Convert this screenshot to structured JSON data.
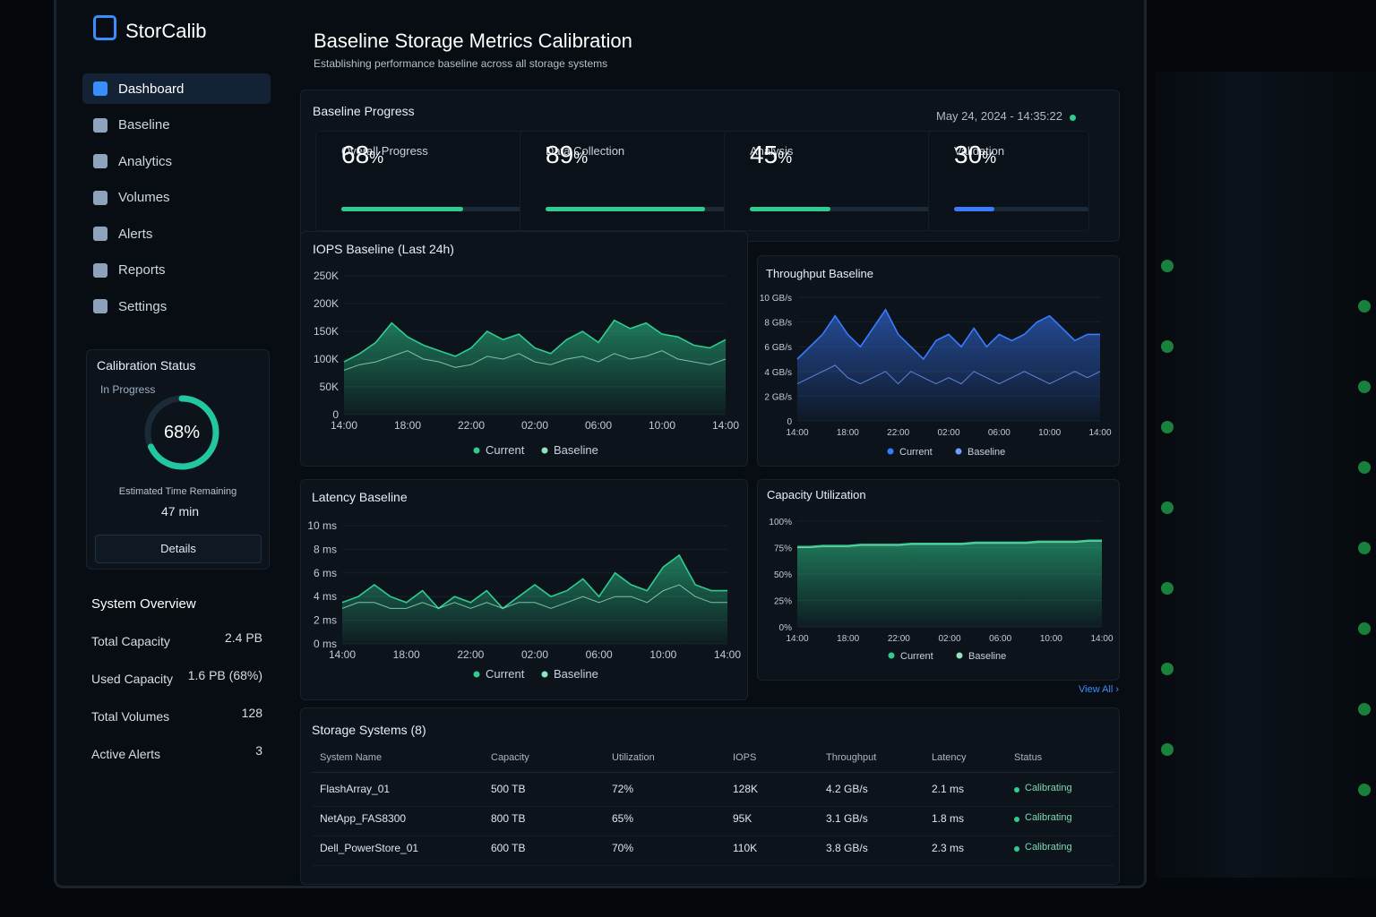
{
  "app": {
    "name": "StorCalib"
  },
  "nav": [
    "Dashboard",
    "Baseline",
    "Analytics",
    "Volumes",
    "Alerts",
    "Reports",
    "Settings"
  ],
  "calibration": {
    "title": "Calibration Status",
    "state": "In Progress",
    "value": 68,
    "unit": "%",
    "eta_label": "Estimated Time Remaining",
    "eta": "47 min",
    "button": "Details"
  },
  "overview": {
    "title": "System Overview",
    "rows": [
      [
        "Total Capacity",
        "2.4 PB"
      ],
      [
        "Used Capacity",
        "1.6 PB (68%)"
      ],
      [
        "Total Volumes",
        "128"
      ],
      [
        "Active Alerts",
        "3"
      ]
    ]
  },
  "header": {
    "title": "Baseline Storage Metrics Calibration",
    "subtitle": "Establishing performance baseline across all storage systems",
    "timestamp": "May 24, 2024 - 14:35:22"
  },
  "progress": {
    "title": "Baseline Progress",
    "items": [
      {
        "value": 68,
        "unit": "%",
        "label": "Overall Progress",
        "color": "#2ecc8f"
      },
      {
        "value": 89,
        "unit": "%",
        "label": "Data Collection",
        "color": "#2ecc8f"
      },
      {
        "value": 45,
        "unit": "%",
        "label": "Analysis",
        "color": "#2ecc8f"
      },
      {
        "value": 30,
        "unit": "%",
        "label": "Validation",
        "color": "#3a7bff"
      }
    ]
  },
  "iops": {
    "type": "line",
    "title": "IOPS Baseline (Last 24h)",
    "categories": [
      "14:00",
      null,
      null,
      null,
      "18:00",
      null,
      null,
      null,
      "22:00",
      null,
      null,
      null,
      "02:00",
      null,
      null,
      null,
      "06:00",
      null,
      null,
      null,
      "10:00",
      null,
      null,
      null,
      "14:00"
    ],
    "series": [
      {
        "name": "Current",
        "color": "#2ecc8f",
        "values": [
          95000,
          110000,
          130000,
          165000,
          140000,
          125000,
          115000,
          105000,
          120000,
          150000,
          135000,
          145000,
          120000,
          110000,
          135000,
          150000,
          130000,
          170000,
          155000,
          165000,
          145000,
          140000,
          125000,
          120000,
          135000
        ]
      },
      {
        "name": "Baseline",
        "color": "#8fe3bd",
        "values": [
          80000,
          90000,
          95000,
          105000,
          115000,
          100000,
          95000,
          85000,
          90000,
          105000,
          100000,
          110000,
          95000,
          90000,
          100000,
          105000,
          95000,
          110000,
          100000,
          105000,
          115000,
          100000,
          95000,
          90000,
          100000
        ]
      }
    ],
    "ylim": [
      0,
      250000
    ],
    "yticks": [
      0,
      {
        "value": 50000,
        "label": "50K"
      },
      {
        "value": 100000,
        "label": "100K"
      },
      {
        "value": 150000,
        "label": "150K"
      },
      {
        "value": 200000,
        "label": "200K"
      },
      {
        "value": 250000,
        "label": "250K"
      }
    ]
  },
  "throughput": {
    "type": "line",
    "title": "Throughput Baseline",
    "categories": [
      "14:00",
      null,
      null,
      null,
      "18:00",
      null,
      null,
      null,
      "22:00",
      null,
      null,
      null,
      "02:00",
      null,
      null,
      null,
      "06:00",
      null,
      null,
      null,
      "10:00",
      null,
      null,
      null,
      "14:00"
    ],
    "series": [
      {
        "name": "Current",
        "color": "#3a7bff",
        "values": [
          5,
          6,
          7,
          8.5,
          7,
          6,
          7.5,
          9,
          7,
          6,
          5,
          6.5,
          7,
          6,
          7.5,
          6,
          7,
          6.5,
          7,
          8,
          8.5,
          7.5,
          6.5,
          7,
          7
        ]
      },
      {
        "name": "Baseline",
        "color": "#6f9dff",
        "values": [
          3,
          3.5,
          4,
          4.5,
          3.5,
          3,
          3.5,
          4,
          3,
          4,
          3.5,
          3,
          3.5,
          3,
          4,
          3.5,
          3,
          3.5,
          4,
          3.5,
          3,
          3.5,
          4,
          3.5,
          4
        ]
      }
    ],
    "ylim": [
      0,
      10
    ],
    "yticks": [
      0,
      {
        "value": 2,
        "label": "2 GB/s"
      },
      {
        "value": 4,
        "label": "4 GB/s"
      },
      {
        "value": 6,
        "label": "6 GB/s"
      },
      {
        "value": 8,
        "label": "8 GB/s"
      },
      {
        "value": 10,
        "label": "10 GB/s"
      }
    ]
  },
  "latency": {
    "type": "line",
    "title": "Latency Baseline",
    "categories": [
      "14:00",
      null,
      null,
      null,
      "18:00",
      null,
      null,
      null,
      "22:00",
      null,
      null,
      null,
      "02:00",
      null,
      null,
      null,
      "06:00",
      null,
      null,
      null,
      "10:00",
      null,
      null,
      null,
      "14:00"
    ],
    "series": [
      {
        "name": "Current",
        "color": "#2ecc8f",
        "values": [
          3.5,
          4,
          5,
          4,
          3.5,
          4.5,
          3,
          4,
          3.5,
          4.5,
          3,
          4,
          5,
          4,
          4.5,
          5.5,
          4,
          6,
          5,
          4.5,
          6.5,
          7.5,
          5,
          4.5,
          4.5
        ]
      },
      {
        "name": "Baseline",
        "color": "#8fe3bd",
        "values": [
          3,
          3.5,
          3.5,
          3,
          3,
          3.5,
          3,
          3.5,
          3,
          3.5,
          3,
          3.5,
          3.5,
          3,
          3.5,
          4,
          3.5,
          4,
          4,
          3.5,
          4.5,
          5,
          4,
          3.5,
          3.5
        ]
      }
    ],
    "ylim": [
      0,
      10
    ],
    "yticks": [
      {
        "value": 0,
        "label": "0 ms"
      },
      {
        "value": 2,
        "label": "2 ms"
      },
      {
        "value": 4,
        "label": "4 ms"
      },
      {
        "value": 6,
        "label": "6 ms"
      },
      {
        "value": 8,
        "label": "8 ms"
      },
      {
        "value": 10,
        "label": "10 ms"
      }
    ]
  },
  "capacity": {
    "type": "line",
    "title": "Capacity Utilization",
    "categories": [
      "14:00",
      null,
      null,
      null,
      "18:00",
      null,
      null,
      null,
      "22:00",
      null,
      null,
      null,
      "02:00",
      null,
      null,
      null,
      "06:00",
      null,
      null,
      null,
      "10:00",
      null,
      null,
      null,
      "14:00"
    ],
    "series": [
      {
        "name": "Current",
        "color": "#2ecc8f",
        "values": [
          76,
          76,
          77,
          77,
          77,
          78,
          78,
          78,
          78,
          79,
          79,
          79,
          79,
          79,
          80,
          80,
          80,
          80,
          80,
          81,
          81,
          81,
          81,
          82,
          82
        ]
      },
      {
        "name": "Baseline",
        "color": "#8fe3bd",
        "values": [
          75,
          75,
          76,
          76,
          76,
          77,
          77,
          77,
          77,
          78,
          78,
          78,
          78,
          78,
          79,
          79,
          79,
          79,
          79,
          80,
          80,
          80,
          80,
          81,
          81
        ]
      }
    ],
    "ylim": [
      0,
      100
    ],
    "yticks": [
      {
        "value": 0,
        "label": "0%"
      },
      {
        "value": 25,
        "label": "25%"
      },
      {
        "value": 50,
        "label": "50%"
      },
      {
        "value": 75,
        "label": "75%"
      },
      {
        "value": 100,
        "label": "100%"
      }
    ]
  },
  "table": {
    "title": "Storage Systems (8)",
    "link": "View All",
    "columns": [
      "System Name",
      "Capacity",
      "Utilization",
      "IOPS",
      "Throughput",
      "Latency",
      "Status"
    ],
    "rows": [
      [
        "FlashArray_01",
        "500 TB",
        "72%",
        "128K",
        "4.2 GB/s",
        "2.1 ms",
        "Calibrating"
      ],
      [
        "NetApp_FAS8300",
        "800 TB",
        "65%",
        "95K",
        "3.1 GB/s",
        "1.8 ms",
        "Calibrating"
      ],
      [
        "Dell_PowerStore_01",
        "600 TB",
        "70%",
        "110K",
        "3.8 GB/s",
        "2.3 ms",
        "Calibrating"
      ]
    ]
  }
}
